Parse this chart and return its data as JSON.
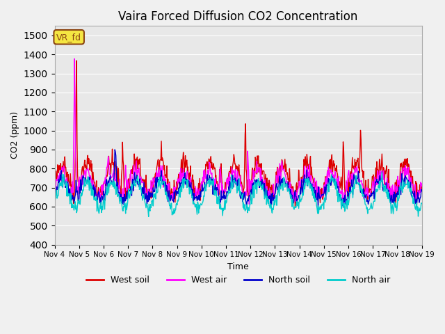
{
  "title": "Vaira Forced Diffusion CO2 Concentration",
  "xlabel": "Time",
  "ylabel": "CO2 (ppm)",
  "ylim": [
    400,
    1550
  ],
  "yticks": [
    400,
    500,
    600,
    700,
    800,
    900,
    1000,
    1100,
    1200,
    1300,
    1400,
    1500
  ],
  "legend_label": "VR_fd",
  "series_labels": [
    "West soil",
    "West air",
    "North soil",
    "North air"
  ],
  "series_colors": [
    "#dd0000",
    "#ff00ff",
    "#0000cc",
    "#00cccc"
  ],
  "background_color": "#e8e8e8",
  "plot_bg_color": "#e8e8e8",
  "n_days": 15,
  "start_day": 4,
  "x_tick_labels": [
    "Nov 4",
    "Nov 5",
    "Nov 6",
    "Nov 7",
    "Nov 8",
    "Nov 9",
    "Nov 10",
    "Nov 11",
    "Nov 12",
    "Nov 13",
    "Nov 14",
    "Nov 15",
    "Nov 16",
    "Nov 17",
    "Nov 18",
    "Nov 19"
  ],
  "seed": 42
}
